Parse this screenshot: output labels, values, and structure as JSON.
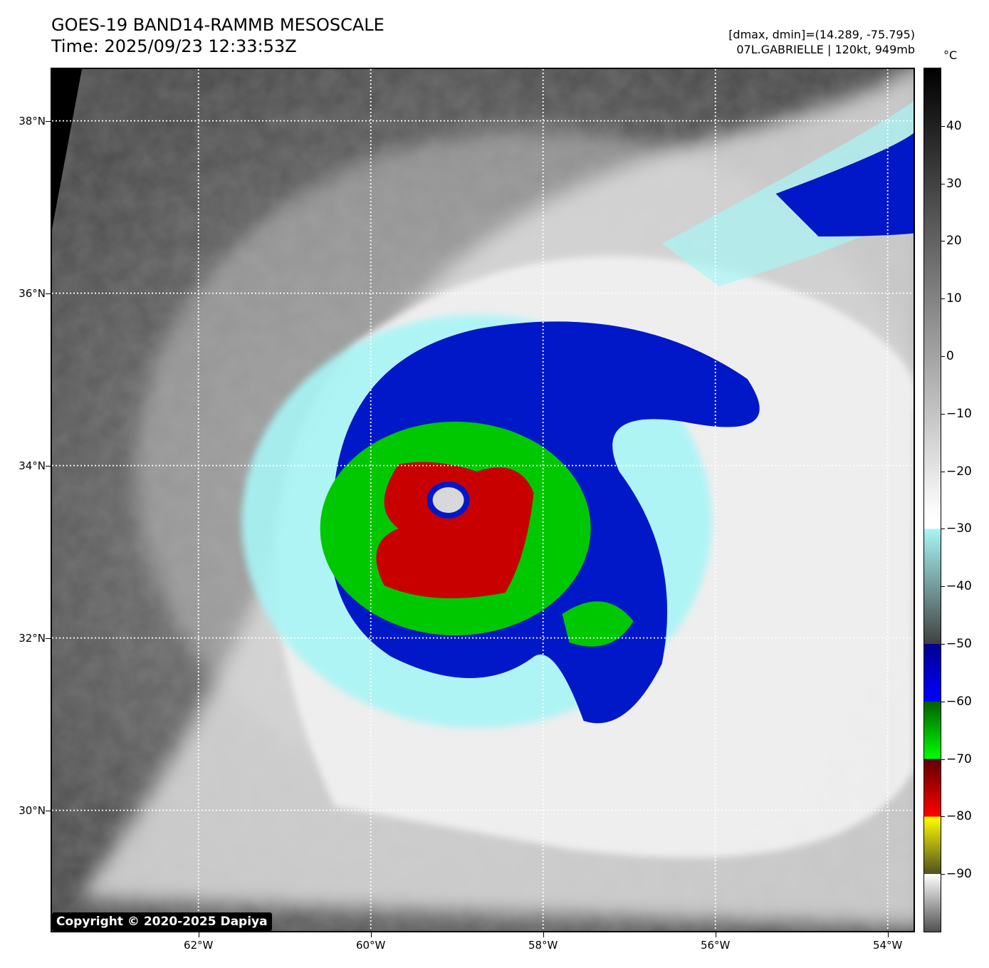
{
  "header": {
    "title_line1": "GOES-19 BAND14-RAMMB MESOSCALE",
    "title_line2": "Time: 2025/09/23 12:33:53Z",
    "info_line1": "[dmax, dmin]=(14.289, -75.795)",
    "info_line2": "07L.GABRIELLE | 120kt, 949mb"
  },
  "map": {
    "lon_range": [
      -63.7,
      -53.7
    ],
    "lat_range": [
      28.6,
      38.6
    ],
    "lat_ticks": [
      {
        "value": 38,
        "label": "38°N"
      },
      {
        "value": 36,
        "label": "36°N"
      },
      {
        "value": 34,
        "label": "34°N"
      },
      {
        "value": 32,
        "label": "32°N"
      },
      {
        "value": 30,
        "label": "30°N"
      }
    ],
    "lon_ticks": [
      {
        "value": -62,
        "label": "62°W"
      },
      {
        "value": -60,
        "label": "60°W"
      },
      {
        "value": -58,
        "label": "58°W"
      },
      {
        "value": -56,
        "label": "56°W"
      },
      {
        "value": -54,
        "label": "54°W"
      }
    ],
    "gridlines": "dotted white",
    "storm_center": {
      "lon": -59.1,
      "lat": 33.6
    }
  },
  "colorbar": {
    "unit": "°C",
    "range": [
      -100,
      50
    ],
    "ticks": [
      {
        "value": 40,
        "label": "40"
      },
      {
        "value": 30,
        "label": "30"
      },
      {
        "value": 20,
        "label": "20"
      },
      {
        "value": 10,
        "label": "10"
      },
      {
        "value": 0,
        "label": "0"
      },
      {
        "value": -10,
        "label": "−10"
      },
      {
        "value": -20,
        "label": "−20"
      },
      {
        "value": -30,
        "label": "−30"
      },
      {
        "value": -40,
        "label": "−40"
      },
      {
        "value": -50,
        "label": "−50"
      },
      {
        "value": -60,
        "label": "−60"
      },
      {
        "value": -70,
        "label": "−70"
      },
      {
        "value": -80,
        "label": "−80"
      },
      {
        "value": -90,
        "label": "−90"
      }
    ],
    "colors": {
      "warm_black": "#000000",
      "cold_gray": "#e8e8e8",
      "cyan": "#a8f5f5",
      "blue": "#0018c8",
      "green": "#00c800",
      "red": "#c80000",
      "yellow": "#f0f000"
    }
  },
  "copyright": "Copyright © 2020-2025 Dapiya"
}
